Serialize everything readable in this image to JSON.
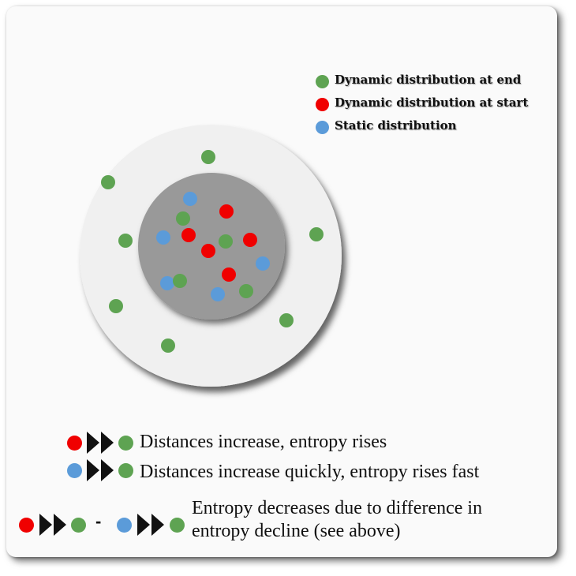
{
  "colors": {
    "green": "#5ea352",
    "red": "#f00000",
    "blue": "#5b9bd9",
    "outer_disk": "#f0f0f0",
    "inner_disk": "#999999"
  },
  "legend": [
    {
      "color": "green",
      "label": "Dynamic distribution at end"
    },
    {
      "color": "red",
      "label": "Dynamic distribution at start"
    },
    {
      "color": "blue",
      "label": "Static distribution"
    }
  ],
  "rules": [
    {
      "from": "red",
      "to": "green",
      "text": "Distances increase, entropy rises"
    },
    {
      "from": "blue",
      "to": "green",
      "text": "Distances increase quickly, entropy rises fast"
    }
  ],
  "combined_rule": {
    "lhs": {
      "from": "red",
      "to": "green"
    },
    "operator": "-",
    "rhs": {
      "from": "blue",
      "to": "green"
    },
    "text_line1": "Entropy decreases due to difference in",
    "text_line2": "entropy decline (see above)"
  },
  "icons": {
    "arrow": "fast-forward-icon"
  }
}
